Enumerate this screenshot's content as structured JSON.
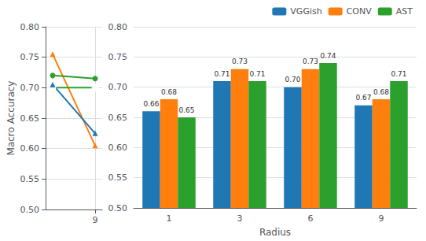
{
  "chart_data": [
    {
      "type": "line",
      "ylabel": "Macro Accuracy",
      "x": [
        6,
        9
      ],
      "series": [
        {
          "color": "#ff7f0e",
          "marker": "triangle",
          "values": [
            0.755,
            0.605
          ]
        },
        {
          "color": "#2ca02c",
          "marker": "circle",
          "values": [
            0.72,
            0.715
          ]
        },
        {
          "color": "#2ca02c",
          "marker": "open_circle",
          "values": [
            0.7,
            0.7
          ]
        },
        {
          "color": "#1f77b4",
          "marker": "triangle",
          "values": [
            0.705,
            0.625
          ]
        }
      ],
      "xlim": [
        5.5,
        9.5
      ],
      "xticks": [
        9
      ],
      "ylim": [
        0.5,
        0.8
      ],
      "yticks": [
        {
          "value": 0.5,
          "label": "0.50"
        },
        0.55,
        {
          "value": 0.6,
          "label": "0.60"
        },
        0.65,
        {
          "value": 0.7,
          "label": "0.70"
        },
        0.75,
        {
          "value": 0.8,
          "label": "0.80"
        }
      ],
      "grid": true
    },
    {
      "type": "bar",
      "xlabel": "Radius",
      "categories": [
        "1",
        "3",
        "6",
        "9"
      ],
      "series": [
        {
          "name": "VGGish",
          "color": "#1f77b4",
          "values": [
            0.66,
            0.71,
            0.7,
            0.67
          ],
          "value_labels": [
            "0.66",
            "0.71",
            "0.70",
            "0.67"
          ]
        },
        {
          "name": "CONV",
          "color": "#ff7f0e",
          "values": [
            0.68,
            0.73,
            0.73,
            0.68
          ],
          "value_labels": [
            "0.68",
            "0.73",
            "0.73",
            "0.68"
          ]
        },
        {
          "name": "AST",
          "color": "#2ca02c",
          "values": [
            0.65,
            0.71,
            0.74,
            0.71
          ],
          "value_labels": [
            "0.65",
            "0.71",
            "0.74",
            "0.71"
          ]
        }
      ],
      "ylim": [
        0.5,
        0.8
      ],
      "yticks": [
        {
          "value": 0.5,
          "label": "0.50"
        },
        0.55,
        {
          "value": 0.6,
          "label": "0.60"
        },
        0.65,
        {
          "value": 0.7,
          "label": "0.70"
        },
        0.75,
        {
          "value": 0.8,
          "label": "0.80"
        }
      ],
      "grid": "y",
      "legend": "upper right",
      "data_labels": true
    }
  ]
}
